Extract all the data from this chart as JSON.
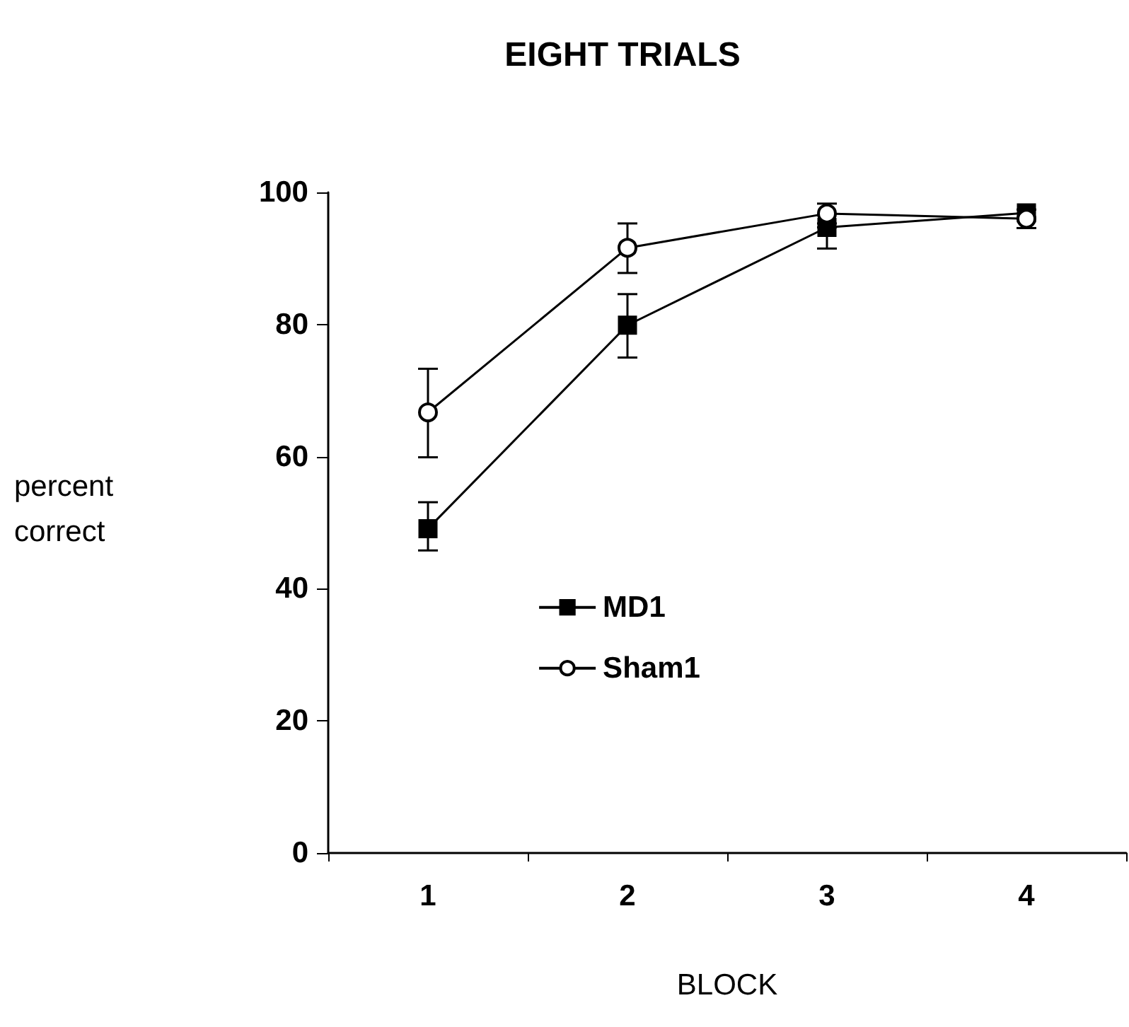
{
  "chart_data": {
    "type": "line",
    "title": "EIGHT TRIALS",
    "xlabel": "BLOCK",
    "ylabel": "percent correct",
    "categories": [
      "1",
      "2",
      "3",
      "4"
    ],
    "series": [
      {
        "name": "MD1",
        "color": "#000000",
        "marker": "square",
        "values": [
          49.1,
          79.9,
          94.7,
          96.9
        ],
        "errors": [
          [
            45.8,
            53.1
          ],
          [
            75.0,
            84.6
          ],
          [
            91.5,
            94.7
          ],
          null
        ]
      },
      {
        "name": "Sham1",
        "color": "#000000",
        "marker": "circle",
        "values": [
          66.7,
          91.6,
          96.8,
          96.0
        ],
        "errors": [
          [
            59.9,
            73.3
          ],
          [
            87.8,
            95.3
          ],
          [
            95.3,
            98.3
          ],
          [
            94.6,
            97.4
          ]
        ]
      }
    ],
    "ylim": [
      0,
      100
    ],
    "yticks": [
      0,
      20,
      40,
      60,
      80,
      100
    ],
    "grid": false,
    "legend": "center",
    "line_style": "solid"
  }
}
